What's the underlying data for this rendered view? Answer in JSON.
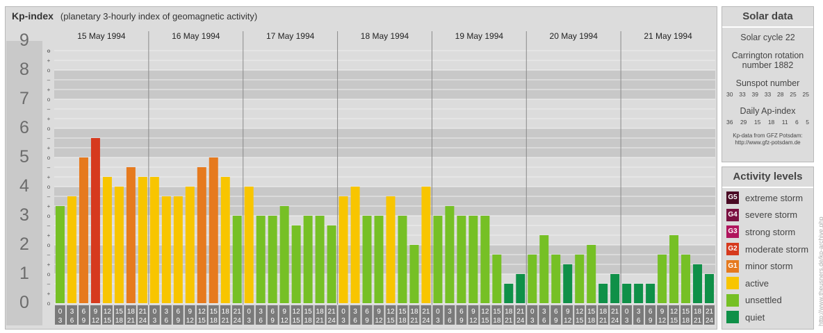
{
  "title": {
    "main": "Kp-index",
    "sub": "(planetary 3-hourly index of geomagnetic activity)"
  },
  "chart_data": {
    "type": "bar",
    "ylim": [
      0,
      9
    ],
    "y_ticks": [
      "0",
      "1",
      "2",
      "3",
      "4",
      "5",
      "6",
      "7",
      "8",
      "9"
    ],
    "sub_ticks": [
      "–",
      "o",
      "+"
    ],
    "days": [
      "15 May 1994",
      "16 May 1994",
      "17 May 1994",
      "18 May 1994",
      "19 May 1994",
      "20 May 1994",
      "21 May 1994"
    ],
    "hour_labels": [
      [
        "0",
        "3"
      ],
      [
        "3",
        "6"
      ],
      [
        "6",
        "9"
      ],
      [
        "9",
        "12"
      ],
      [
        "12",
        "15"
      ],
      [
        "15",
        "18"
      ],
      [
        "18",
        "21"
      ],
      [
        "21",
        "24"
      ]
    ],
    "values": [
      [
        3.333,
        3.667,
        5.0,
        5.667,
        4.333,
        4.0,
        4.667,
        4.333
      ],
      [
        4.333,
        3.667,
        3.667,
        4.0,
        4.667,
        5.0,
        4.333,
        3.0
      ],
      [
        4.0,
        3.0,
        3.0,
        3.333,
        2.667,
        3.0,
        3.0,
        2.667
      ],
      [
        3.667,
        4.0,
        3.0,
        3.0,
        3.667,
        3.0,
        2.0,
        4.0
      ],
      [
        3.0,
        3.333,
        3.0,
        3.0,
        3.0,
        1.667,
        0.667,
        1.0
      ],
      [
        1.667,
        2.333,
        1.667,
        1.333,
        1.667,
        2.0,
        0.667,
        1.0
      ],
      [
        0.667,
        0.667,
        0.667,
        1.667,
        2.333,
        1.667,
        1.333,
        1.0
      ]
    ]
  },
  "solar": {
    "title": "Solar data",
    "cycle": "Solar cycle 22",
    "carrington_1": "Carrington rotation",
    "carrington_2": "number 1882",
    "sunspot_title": "Sunspot number",
    "sunspots": [
      "30",
      "33",
      "39",
      "33",
      "28",
      "25",
      "25"
    ],
    "ap_title": "Daily Ap-index",
    "ap": [
      "36",
      "29",
      "15",
      "18",
      "11",
      "6",
      "5"
    ],
    "credit_1": "Kp-data from GFZ Potsdam:",
    "credit_2": "http://www.gfz-potsdam.de"
  },
  "levels": {
    "title": "Activity levels",
    "items": [
      {
        "badge": "G5",
        "label": "extreme storm",
        "color": "#4a0a24"
      },
      {
        "badge": "G4",
        "label": "severe storm",
        "color": "#7a1040"
      },
      {
        "badge": "G3",
        "label": "strong storm",
        "color": "#b0155d"
      },
      {
        "badge": "G2",
        "label": "moderate storm",
        "color": "#d63a1e"
      },
      {
        "badge": "G1",
        "label": "minor storm",
        "color": "#e67a1e"
      },
      {
        "badge": "",
        "label": "active",
        "color": "#f8c500"
      },
      {
        "badge": "",
        "label": "unsettled",
        "color": "#76c025"
      },
      {
        "badge": "",
        "label": "quiet",
        "color": "#0f9048"
      }
    ]
  },
  "credit_vertical": "http://www.theusners.de/kp-archive.php",
  "colors": {
    "quiet": "#0f9048",
    "unsettled": "#76c025",
    "active": "#f8c500",
    "g1": "#e67a1e",
    "g2": "#d63a1e"
  }
}
